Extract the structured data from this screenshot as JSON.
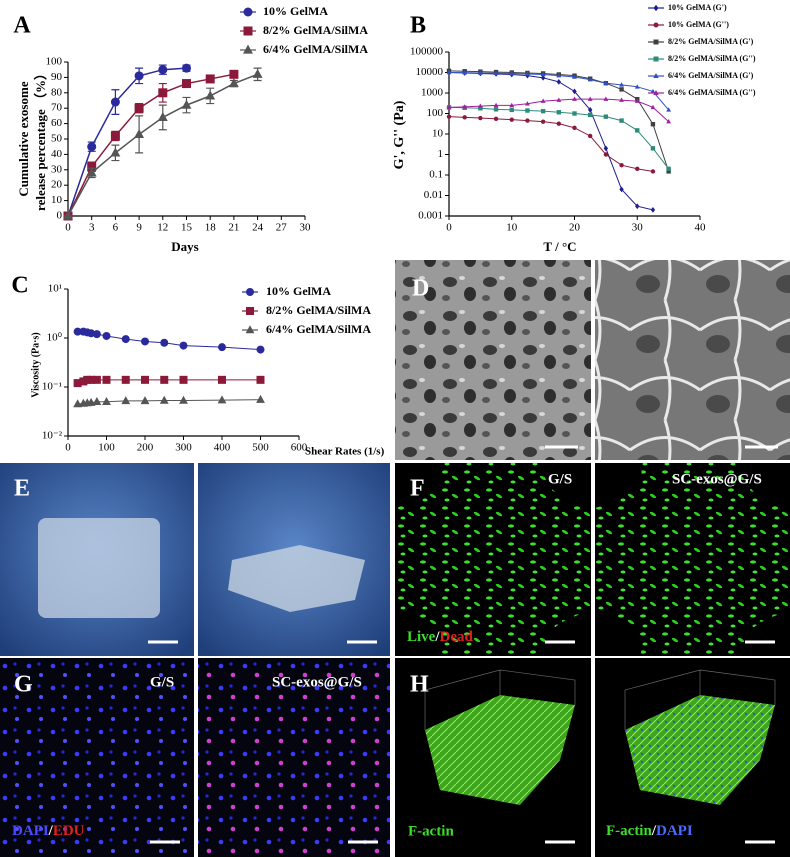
{
  "chart_data": [
    {
      "type": "line",
      "panel": "A",
      "ylabel": [
        "Cumulative exosome",
        "release percentage （%）"
      ],
      "xlabel": "Days",
      "xlim": [
        0,
        30
      ],
      "xticks": [
        0,
        3,
        6,
        9,
        12,
        15,
        18,
        21,
        24,
        27,
        30
      ],
      "ylim": [
        0,
        100
      ],
      "yticks": [
        0,
        10,
        20,
        30,
        40,
        50,
        60,
        70,
        80,
        90,
        100
      ],
      "series": [
        {
          "name": "10% GelMA",
          "color": "#2a2a9c",
          "marker": "circle",
          "x": [
            0,
            3,
            6,
            9,
            12,
            15
          ],
          "values": [
            0,
            45,
            74,
            91,
            95,
            96
          ],
          "errors": [
            0,
            3,
            8,
            5,
            3,
            2
          ]
        },
        {
          "name": "8/2% GelMA/SilMA",
          "color": "#8b1a3a",
          "marker": "square",
          "x": [
            0,
            3,
            6,
            9,
            12,
            15,
            18,
            21
          ],
          "values": [
            0,
            32,
            52,
            70,
            80,
            86,
            89,
            92
          ],
          "errors": [
            0,
            3,
            3,
            3,
            6,
            2,
            2,
            2
          ]
        },
        {
          "name": "6/4% GelMA/SilMA",
          "color": "#555555",
          "marker": "triangle",
          "x": [
            0,
            3,
            6,
            9,
            12,
            15,
            18,
            21,
            24
          ],
          "values": [
            0,
            28,
            41,
            53,
            64,
            72,
            78,
            86,
            92
          ],
          "errors": [
            0,
            3,
            5,
            12,
            8,
            5,
            5,
            2,
            4
          ]
        }
      ]
    },
    {
      "type": "line",
      "panel": "B",
      "yscale": "log",
      "ylabel": "G', G'' (Pa)",
      "xlabel": "T / °C",
      "xlim": [
        0,
        40
      ],
      "xticks": [
        0,
        10,
        20,
        30,
        40
      ],
      "ylim": [
        0.001,
        100000
      ],
      "yticks": [
        0.001,
        0.01,
        0.1,
        1,
        10,
        100,
        1000,
        10000,
        100000
      ],
      "series": [
        {
          "name": "10% GelMA (G')",
          "color": "#1f1f8f",
          "marker": "diamond",
          "x": [
            0,
            2.5,
            5,
            7.5,
            10,
            12.5,
            15,
            17.5,
            20,
            22.5,
            25,
            27.5,
            30,
            32.5,
            35
          ],
          "values": [
            10000,
            9500,
            9000,
            8500,
            8000,
            7000,
            5500,
            3500,
            1200,
            150,
            2,
            0.02,
            0.003,
            0.002,
            null
          ]
        },
        {
          "name": "10% GelMA (G'')",
          "color": "#8b1a3a",
          "marker": "circle",
          "x": [
            0,
            2.5,
            5,
            7.5,
            10,
            12.5,
            15,
            17.5,
            20,
            22.5,
            25,
            27.5,
            30,
            32.5,
            35
          ],
          "values": [
            70,
            65,
            60,
            55,
            50,
            45,
            40,
            32,
            20,
            8,
            1,
            0.3,
            0.2,
            0.15,
            null
          ]
        },
        {
          "name": "8/2% GelMA/SilMA (G')",
          "color": "#404040",
          "marker": "square",
          "x": [
            0,
            2.5,
            5,
            7.5,
            10,
            12.5,
            15,
            17.5,
            20,
            22.5,
            25,
            27.5,
            30,
            32.5,
            35
          ],
          "values": [
            12000,
            11500,
            11000,
            10500,
            10000,
            9500,
            9000,
            8000,
            7000,
            5000,
            3000,
            1500,
            500,
            30,
            0.15
          ]
        },
        {
          "name": "8/2% GelMA/SilMA (G'')",
          "color": "#2e8b7a",
          "marker": "square",
          "x": [
            0,
            2.5,
            5,
            7.5,
            10,
            12.5,
            15,
            17.5,
            20,
            22.5,
            25,
            27.5,
            30,
            32.5,
            35
          ],
          "values": [
            200,
            190,
            180,
            160,
            150,
            140,
            130,
            115,
            100,
            85,
            70,
            45,
            15,
            2,
            0.2
          ]
        },
        {
          "name": "6/4% GelMA/SilMA (G')",
          "color": "#3050c0",
          "marker": "triangle",
          "x": [
            0,
            2.5,
            5,
            7.5,
            10,
            12.5,
            15,
            17.5,
            20,
            22.5,
            25,
            27.5,
            30,
            32.5,
            35
          ],
          "values": [
            10000,
            9800,
            9500,
            9200,
            9000,
            8500,
            8000,
            7000,
            6000,
            4500,
            3000,
            2500,
            2000,
            1200,
            150
          ]
        },
        {
          "name": "6/4% GelMA/SilMA (G'')",
          "color": "#a020a0",
          "marker": "triangle",
          "x": [
            0,
            2.5,
            5,
            7.5,
            10,
            12.5,
            15,
            17.5,
            20,
            22.5,
            25,
            27.5,
            30,
            32.5,
            35
          ],
          "values": [
            200,
            210,
            230,
            250,
            250,
            300,
            400,
            450,
            500,
            500,
            500,
            450,
            400,
            200,
            40
          ]
        }
      ]
    },
    {
      "type": "line",
      "panel": "C",
      "yscale": "log",
      "ylabel": "Viscosity (Pa·s)",
      "xlabel": "Shear Rates (1/s)",
      "xlim": [
        0,
        600
      ],
      "xticks": [
        0,
        100,
        200,
        300,
        400,
        500,
        600
      ],
      "ylim": [
        0.01,
        10
      ],
      "yticks": [
        {
          "value": 0.01,
          "label": "10⁻²"
        },
        {
          "value": 0.1,
          "label": "10⁻¹"
        },
        {
          "value": 1,
          "label": "10⁰"
        },
        {
          "value": 10,
          "label": "10¹"
        }
      ],
      "series": [
        {
          "name": "10% GelMA",
          "color": "#2a2a9c",
          "marker": "circle",
          "x": [
            25,
            40,
            50,
            60,
            75,
            100,
            150,
            200,
            250,
            300,
            400,
            500
          ],
          "values": [
            1.35,
            1.35,
            1.3,
            1.25,
            1.2,
            1.1,
            0.95,
            0.85,
            0.8,
            0.7,
            0.65,
            0.58
          ]
        },
        {
          "name": "8/2% GelMA/SilMA",
          "color": "#8b1a3a",
          "marker": "square",
          "x": [
            25,
            40,
            50,
            60,
            75,
            100,
            150,
            200,
            250,
            300,
            400,
            500
          ],
          "values": [
            0.12,
            0.13,
            0.14,
            0.14,
            0.14,
            0.14,
            0.14,
            0.14,
            0.14,
            0.14,
            0.14,
            0.14
          ]
        },
        {
          "name": "6/4% GelMA/SilMA",
          "color": "#555555",
          "marker": "triangle",
          "x": [
            25,
            40,
            50,
            60,
            75,
            100,
            150,
            200,
            250,
            300,
            400,
            500
          ],
          "values": [
            0.045,
            0.046,
            0.047,
            0.048,
            0.05,
            0.05,
            0.052,
            0.052,
            0.053,
            0.053,
            0.054,
            0.055
          ]
        }
      ]
    }
  ],
  "image_panels": {
    "D": {
      "label": "D"
    },
    "E": {
      "label": "E"
    },
    "F": {
      "label": "F",
      "left": "G/S",
      "right": "SC-exos@G/S",
      "stain": [
        "Live",
        "/",
        "Dead"
      ]
    },
    "G": {
      "label": "G",
      "left": "G/S",
      "right": "SC-exos@G/S",
      "stain": [
        "DAPI",
        "/",
        "EDU"
      ]
    },
    "H": {
      "label": "H",
      "left_stain": "F-actin",
      "right_stain": [
        "F-actin",
        "/",
        "DAPI"
      ]
    }
  }
}
